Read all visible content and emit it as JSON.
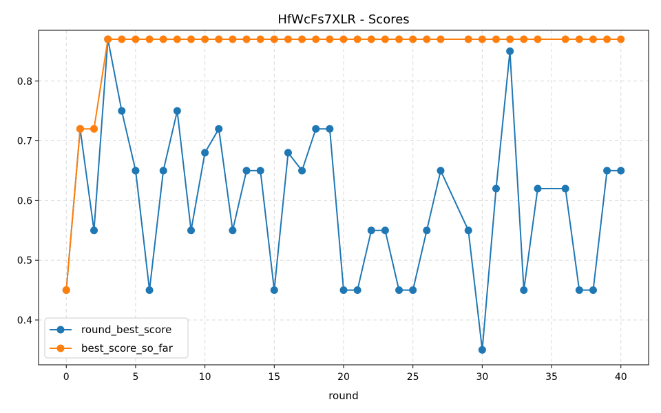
{
  "chart_data": {
    "type": "line",
    "title": "HfWcFs7XLR - Scores",
    "xlabel": "round",
    "ylabel": "",
    "xlim": [
      -2,
      42
    ],
    "ylim": [
      0.325,
      0.885
    ],
    "xticks": [
      0,
      5,
      10,
      15,
      20,
      25,
      30,
      35,
      40
    ],
    "yticks": [
      0.4,
      0.5,
      0.6,
      0.7,
      0.8
    ],
    "grid": true,
    "legend_position": "lower-left",
    "series": [
      {
        "name": "round_best_score",
        "color": "#1f77b4",
        "x": [
          0,
          1,
          2,
          3,
          4,
          5,
          6,
          7,
          8,
          9,
          10,
          11,
          12,
          13,
          14,
          15,
          16,
          17,
          18,
          19,
          20,
          21,
          22,
          23,
          24,
          25,
          26,
          27,
          29,
          30,
          31,
          32,
          33,
          34,
          36,
          37,
          38,
          39,
          40
        ],
        "y": [
          0.45,
          0.72,
          0.55,
          0.87,
          0.75,
          0.65,
          0.45,
          0.65,
          0.75,
          0.55,
          0.68,
          0.72,
          0.55,
          0.65,
          0.65,
          0.45,
          0.68,
          0.65,
          0.72,
          0.72,
          0.45,
          0.45,
          0.55,
          0.55,
          0.45,
          0.45,
          0.55,
          0.65,
          0.55,
          0.35,
          0.62,
          0.85,
          0.45,
          0.62,
          0.62,
          0.45,
          0.45,
          0.65,
          0.65
        ]
      },
      {
        "name": "best_score_so_far",
        "color": "#ff7f0e",
        "x": [
          0,
          1,
          2,
          3,
          4,
          5,
          6,
          7,
          8,
          9,
          10,
          11,
          12,
          13,
          14,
          15,
          16,
          17,
          18,
          19,
          20,
          21,
          22,
          23,
          24,
          25,
          26,
          27,
          29,
          30,
          31,
          32,
          33,
          34,
          36,
          37,
          38,
          39,
          40
        ],
        "y": [
          0.45,
          0.72,
          0.72,
          0.87,
          0.87,
          0.87,
          0.87,
          0.87,
          0.87,
          0.87,
          0.87,
          0.87,
          0.87,
          0.87,
          0.87,
          0.87,
          0.87,
          0.87,
          0.87,
          0.87,
          0.87,
          0.87,
          0.87,
          0.87,
          0.87,
          0.87,
          0.87,
          0.87,
          0.87,
          0.87,
          0.87,
          0.87,
          0.87,
          0.87,
          0.87,
          0.87,
          0.87,
          0.87,
          0.87
        ]
      }
    ]
  }
}
